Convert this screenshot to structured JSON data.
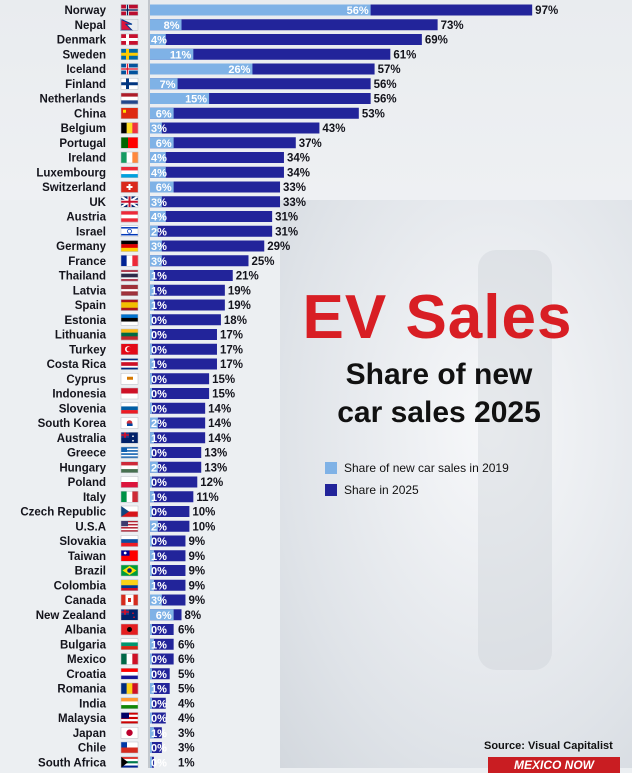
{
  "title": "EV Sales",
  "subtitle_line1": "Share of new",
  "subtitle_line2": "car sales 2025",
  "source": "Source: Visual Capitalist",
  "logo_text": "MEXICO NOW",
  "colors": {
    "y2019": "#7fb2e6",
    "y2025": "#22249a",
    "title": "#d81e24"
  },
  "chart_data": {
    "type": "bar",
    "orientation": "horizontal",
    "title": "EV Sales — Share of new car sales 2025",
    "value_unit": "%",
    "xlim": [
      0,
      100
    ],
    "legend": {
      "position": "right-middle"
    },
    "series": [
      {
        "name": "Share of new car sales in 2019",
        "color": "#7fb2e6",
        "values": [
          56,
          8,
          4,
          11,
          26,
          7,
          15,
          6,
          3,
          6,
          4,
          4,
          6,
          3,
          4,
          2,
          3,
          3,
          1,
          1,
          1,
          0,
          0,
          0,
          1,
          0,
          0,
          0,
          2,
          1,
          0,
          2,
          0,
          1,
          0,
          2,
          0,
          1,
          0,
          1,
          3,
          6,
          0,
          1,
          0,
          0,
          1,
          0,
          0,
          1,
          0,
          0
        ]
      },
      {
        "name": "Share in 2025",
        "color": "#22249a",
        "values": [
          97,
          73,
          69,
          61,
          57,
          56,
          56,
          53,
          43,
          37,
          34,
          34,
          33,
          33,
          31,
          31,
          29,
          25,
          21,
          19,
          19,
          18,
          17,
          17,
          17,
          15,
          15,
          14,
          14,
          14,
          13,
          13,
          12,
          11,
          10,
          10,
          9,
          9,
          9,
          9,
          9,
          8,
          6,
          6,
          6,
          5,
          5,
          4,
          4,
          3,
          3,
          1
        ]
      }
    ],
    "categories": [
      {
        "name": "Norway",
        "flag": "no"
      },
      {
        "name": "Nepal",
        "flag": "np"
      },
      {
        "name": "Denmark",
        "flag": "dk"
      },
      {
        "name": "Sweden",
        "flag": "se"
      },
      {
        "name": "Iceland",
        "flag": "is"
      },
      {
        "name": "Finland",
        "flag": "fi"
      },
      {
        "name": "Netherlands",
        "flag": "nl"
      },
      {
        "name": "China",
        "flag": "cn"
      },
      {
        "name": "Belgium",
        "flag": "be"
      },
      {
        "name": "Portugal",
        "flag": "pt"
      },
      {
        "name": "Ireland",
        "flag": "ie"
      },
      {
        "name": "Luxembourg",
        "flag": "lu"
      },
      {
        "name": "Switzerland",
        "flag": "ch"
      },
      {
        "name": "UK",
        "flag": "uk"
      },
      {
        "name": "Austria",
        "flag": "at"
      },
      {
        "name": "Israel",
        "flag": "il"
      },
      {
        "name": "Germany",
        "flag": "de"
      },
      {
        "name": "France",
        "flag": "fr"
      },
      {
        "name": "Thailand",
        "flag": "th"
      },
      {
        "name": "Latvia",
        "flag": "lv"
      },
      {
        "name": "Spain",
        "flag": "es"
      },
      {
        "name": "Estonia",
        "flag": "ee"
      },
      {
        "name": "Lithuania",
        "flag": "lt"
      },
      {
        "name": "Turkey",
        "flag": "tr"
      },
      {
        "name": "Costa Rica",
        "flag": "cr"
      },
      {
        "name": "Cyprus",
        "flag": "cy"
      },
      {
        "name": "Indonesia",
        "flag": "id"
      },
      {
        "name": "Slovenia",
        "flag": "si"
      },
      {
        "name": "South Korea",
        "flag": "kr"
      },
      {
        "name": "Australia",
        "flag": "au"
      },
      {
        "name": "Greece",
        "flag": "gr"
      },
      {
        "name": "Hungary",
        "flag": "hu"
      },
      {
        "name": "Poland",
        "flag": "pl"
      },
      {
        "name": "Italy",
        "flag": "it"
      },
      {
        "name": "Czech Republic",
        "flag": "cz"
      },
      {
        "name": "U.S.A",
        "flag": "us"
      },
      {
        "name": "Slovakia",
        "flag": "sk"
      },
      {
        "name": "Taiwan",
        "flag": "tw"
      },
      {
        "name": "Brazil",
        "flag": "br"
      },
      {
        "name": "Colombia",
        "flag": "co"
      },
      {
        "name": "Canada",
        "flag": "ca"
      },
      {
        "name": "New Zealand",
        "flag": "nz"
      },
      {
        "name": "Albania",
        "flag": "al"
      },
      {
        "name": "Bulgaria",
        "flag": "bg"
      },
      {
        "name": "Mexico",
        "flag": "mx"
      },
      {
        "name": "Croatia",
        "flag": "hr"
      },
      {
        "name": "Romania",
        "flag": "ro"
      },
      {
        "name": "India",
        "flag": "in"
      },
      {
        "name": "Malaysia",
        "flag": "my"
      },
      {
        "name": "Japan",
        "flag": "jp"
      },
      {
        "name": "Chile",
        "flag": "cl"
      },
      {
        "name": "South Africa",
        "flag": "za"
      }
    ]
  }
}
